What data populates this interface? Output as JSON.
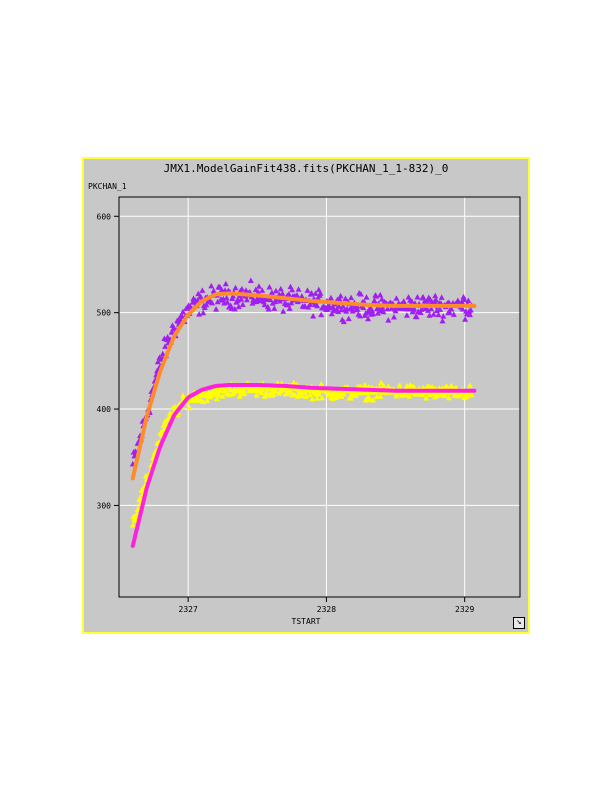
{
  "window": {
    "title": "JMX1.ModelGainFit438.fits(PKCHAN_1_1-832)_0",
    "resize_icon": "resize-arrow-icon"
  },
  "colors": {
    "background": "#c8c8c8",
    "border": "#ffff33",
    "grid": "#ffffff",
    "series_upper_points": "#a020f0",
    "series_upper_fit": "#ff8c2a",
    "series_lower_points": "#ffff00",
    "series_lower_fit": "#ff22dd"
  },
  "chart_data": {
    "type": "scatter",
    "title": "JMX1.ModelGainFit438.fits(PKCHAN_1_1-832)_0",
    "xlabel": "TSTART",
    "ylabel": "PKCHAN_1",
    "xlim": [
      2326.5,
      2329.4
    ],
    "ylim": [
      205,
      620
    ],
    "x_ticks": [
      2327,
      2328,
      2329
    ],
    "y_ticks": [
      300,
      400,
      500,
      600
    ],
    "grid": true,
    "marker": "triangle",
    "x_range_data": [
      2326.6,
      2329.07
    ],
    "series": [
      {
        "kind": "points",
        "color": "#a020f0",
        "x": [
          2326.6,
          2326.7,
          2326.8,
          2326.9,
          2327.0,
          2327.1,
          2327.2,
          2327.3,
          2327.5,
          2327.7,
          2327.9,
          2328.1,
          2328.3,
          2328.5,
          2328.7,
          2328.9,
          2329.05
        ],
        "y": [
          342,
          395,
          450,
          485,
          502,
          512,
          516,
          518,
          517,
          513,
          511,
          508,
          506,
          506,
          507,
          507,
          508
        ]
      },
      {
        "kind": "fit",
        "color": "#ff8c2a",
        "x": [
          2326.6,
          2326.7,
          2326.8,
          2326.9,
          2327.0,
          2327.1,
          2327.2,
          2327.3,
          2327.5,
          2327.7,
          2327.9,
          2328.1,
          2328.3,
          2328.5,
          2328.7,
          2328.9,
          2329.07
        ],
        "y": [
          328,
          392,
          440,
          476,
          498,
          512,
          519,
          520,
          518,
          515,
          512,
          510,
          508,
          507,
          507,
          507,
          507
        ]
      },
      {
        "kind": "points",
        "color": "#ffff00",
        "x": [
          2326.6,
          2326.7,
          2326.8,
          2326.9,
          2327.0,
          2327.1,
          2327.2,
          2327.3,
          2327.5,
          2327.7,
          2327.9,
          2328.1,
          2328.3,
          2328.5,
          2328.7,
          2328.9,
          2329.05
        ],
        "y": [
          282,
          325,
          372,
          398,
          410,
          415,
          418,
          420,
          421,
          420,
          419,
          417,
          418,
          419,
          418,
          417,
          417
        ]
      },
      {
        "kind": "fit",
        "color": "#ff22dd",
        "x": [
          2326.6,
          2326.7,
          2326.8,
          2326.9,
          2327.0,
          2327.1,
          2327.2,
          2327.3,
          2327.5,
          2327.7,
          2327.9,
          2328.1,
          2328.3,
          2328.5,
          2328.7,
          2328.9,
          2329.07
        ],
        "y": [
          258,
          318,
          362,
          394,
          412,
          420,
          424,
          425,
          425,
          424,
          422,
          421,
          420,
          419,
          419,
          419,
          419
        ]
      }
    ]
  }
}
